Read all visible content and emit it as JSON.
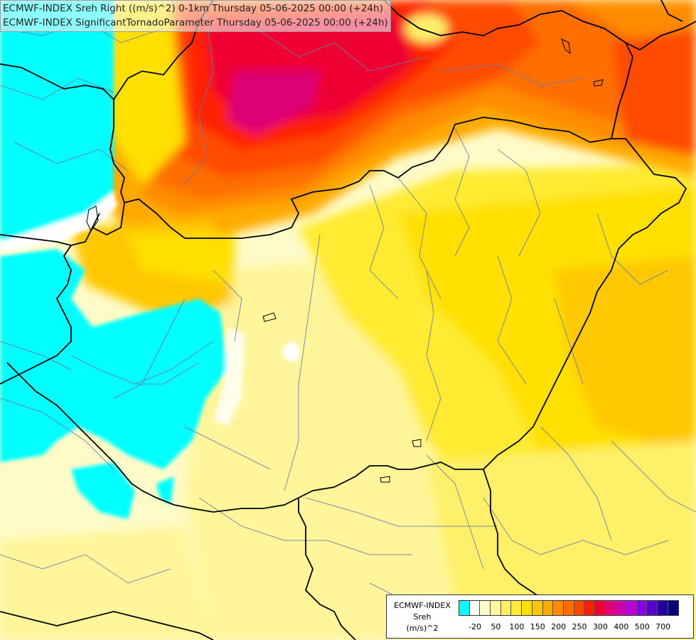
{
  "map": {
    "title_line1": "ECMWF-INDEX Sreh Right ((m/s)^2) 0-1km Thursday 05-06-2025 00:00 (+24h)",
    "title_line2": "ECMWF-INDEX SignificantTornadoParameter Thursday 05-06-2025 00:00 (+24h)",
    "variable": "Storm-relative helicity (0-1 km)",
    "units": "(m/s)^2",
    "valid_time": "Thursday 05-06-2025 00:00",
    "lead": "+24h"
  },
  "legend": {
    "line1": "ECMWF-INDEX",
    "line2": "Sreh",
    "line3": "(m/s)^2",
    "colors": [
      "#00ffff",
      "#ffffff",
      "#fffbc8",
      "#fff59a",
      "#fff06a",
      "#ffeb33",
      "#ffe000",
      "#ffc800",
      "#ffaa00",
      "#ff8c00",
      "#ff6e00",
      "#ff4b00",
      "#ff2000",
      "#ee0033",
      "#dd0077",
      "#cc00aa",
      "#bb00dd",
      "#8800ee",
      "#5500cc",
      "#220099",
      "#000077"
    ],
    "tick_labels": [
      "-20",
      "50",
      "100",
      "150",
      "200",
      "250",
      "300",
      "400",
      "500",
      "700"
    ]
  },
  "chart_data": {
    "type": "heatmap",
    "field": "Sreh 0-1km",
    "units": "(m/s)^2",
    "scale_breaks": [
      -20,
      50,
      100,
      150,
      200,
      250,
      300,
      400,
      500,
      700
    ]
  }
}
